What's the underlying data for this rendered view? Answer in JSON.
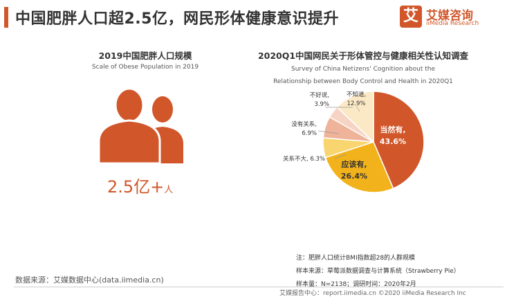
{
  "header": {
    "title": "中国肥胖人口超2.5亿，网民形体健康意识提升"
  },
  "logo": {
    "mark": "艾",
    "name": "艾媒咨询",
    "sub": "iiMedia Research"
  },
  "left": {
    "title": "2019中国肥胖人口规模",
    "subtitle": "Scale of Obese Population in 2019",
    "number": "2.5亿+",
    "unit": "人",
    "icon": "people-icon"
  },
  "chart_data": {
    "type": "pie",
    "title": "2020Q1中国网民关于形体管控与健康相关性认知调查",
    "subtitle": "Survey of China Netizens' Cognition about the Relationship between Body Control and Health in 2020Q1",
    "slices": [
      {
        "label": "当然有,",
        "value": 43.6,
        "display": "43.6%",
        "color": "#d1572b"
      },
      {
        "label": "应该有,",
        "value": 26.4,
        "display": "26.4%",
        "color": "#f2b21b"
      },
      {
        "label": "关系不大,",
        "value": 6.3,
        "display": "6.3%",
        "color": "#f8d56f"
      },
      {
        "label": "没有关系,",
        "value": 6.9,
        "display": "6.9%",
        "color": "#efb39a"
      },
      {
        "label": "不好说,",
        "value": 3.9,
        "display": "3.9%",
        "color": "#f6d3c3"
      },
      {
        "label": "不知道,",
        "value": 12.9,
        "display": "12.9%",
        "color": "#fbe9c6"
      }
    ]
  },
  "notes": {
    "note": "注：肥胖人口统计BMI指数超28的人群规模",
    "sample_source": "样本来源：草莓派数据调查与计算系统（Strawberry Pie）",
    "sample_size": "样本量：N=2138；调研时间：2020年2月"
  },
  "source": "数据来源：艾媒数据中心(data.iimedia.cn)",
  "footer": "艾媒报告中心：report.iimedia.cn ©2020 iiMedia Research Inc"
}
